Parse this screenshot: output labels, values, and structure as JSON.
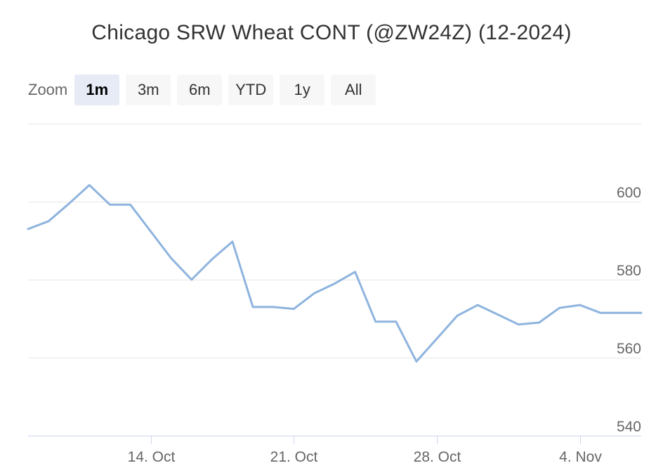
{
  "chart_data": {
    "type": "line",
    "title": "Chicago SRW Wheat CONT (@ZW24Z) (12-2024)",
    "zoom": {
      "label": "Zoom",
      "buttons": [
        "1m",
        "3m",
        "6m",
        "YTD",
        "1y",
        "All"
      ],
      "selected": "1m"
    },
    "x_tick_labels": [
      "14. Oct",
      "21. Oct",
      "28. Oct",
      "4. Nov"
    ],
    "x_tick_dates": [
      "2024-10-14",
      "2024-10-21",
      "2024-10-28",
      "2024-11-04"
    ],
    "y_ticks": [
      540,
      560,
      580,
      600
    ],
    "ylim": [
      540,
      620
    ],
    "xlim": [
      "2024-10-08",
      "2024-11-07"
    ],
    "grid": true,
    "line_color": "#8eb4de",
    "series": [
      {
        "x": [
          "2024-10-08",
          "2024-10-09",
          "2024-10-10",
          "2024-10-11",
          "2024-10-12",
          "2024-10-13",
          "2024-10-15",
          "2024-10-16",
          "2024-10-17",
          "2024-10-18",
          "2024-10-19",
          "2024-10-20",
          "2024-10-21",
          "2024-10-22",
          "2024-10-23",
          "2024-10-24",
          "2024-10-25",
          "2024-10-26",
          "2024-10-27",
          "2024-10-29",
          "2024-10-30",
          "2024-10-31",
          "2024-11-01",
          "2024-11-02",
          "2024-11-03",
          "2024-11-04",
          "2024-11-05",
          "2024-11-06",
          "2024-11-07"
        ],
        "values": [
          593,
          595,
          599.5,
          604.25,
          599.25,
          599.25,
          585.5,
          580,
          585.25,
          589.75,
          573,
          573,
          572.5,
          576.5,
          579,
          582,
          569.25,
          569.25,
          559,
          570.75,
          573.5,
          571,
          568.5,
          569,
          572.75,
          573.5,
          571.5,
          571.5,
          571.5
        ]
      }
    ]
  }
}
